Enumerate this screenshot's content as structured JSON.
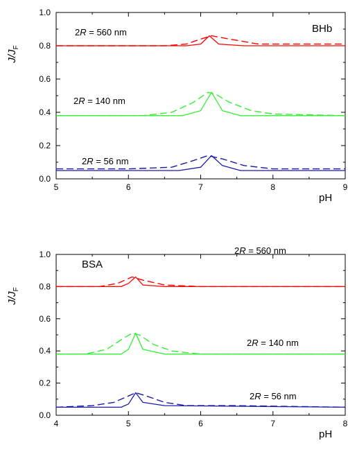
{
  "chart_data": [
    {
      "type": "line",
      "panel_label": "BHb",
      "ylabel": "J/J_F",
      "xlabel": "pH",
      "xlim": [
        5,
        9
      ],
      "ylim": [
        0,
        1.0
      ],
      "xticks": [
        "5",
        "6",
        "7",
        "8",
        "9"
      ],
      "yticks": [
        "0.0",
        "0.2",
        "0.4",
        "0.6",
        "0.8",
        "1.0"
      ],
      "grid": false,
      "series": [
        {
          "name": "2R = 560 nm",
          "color": "#ff0000",
          "style": "solid",
          "x": [
            5.0,
            6.8,
            7.0,
            7.12,
            7.25,
            7.6,
            9.0
          ],
          "y": [
            0.8,
            0.8,
            0.81,
            0.86,
            0.81,
            0.8,
            0.8
          ]
        },
        {
          "name": "2R = 560 nm",
          "color": "#ff0000",
          "style": "dashed",
          "x": [
            5.0,
            6.5,
            6.8,
            7.0,
            7.15,
            7.4,
            7.8,
            9.0
          ],
          "y": [
            0.8,
            0.8,
            0.81,
            0.84,
            0.86,
            0.84,
            0.81,
            0.81
          ]
        },
        {
          "name": "2R = 140 nm",
          "color": "#33ee33",
          "style": "solid",
          "x": [
            5.0,
            6.75,
            7.0,
            7.15,
            7.3,
            7.55,
            9.0
          ],
          "y": [
            0.38,
            0.38,
            0.41,
            0.52,
            0.41,
            0.38,
            0.38
          ]
        },
        {
          "name": "2R = 140 nm",
          "color": "#33ee33",
          "style": "dashed",
          "x": [
            5.0,
            6.2,
            6.6,
            6.9,
            7.1,
            7.2,
            7.4,
            7.7,
            8.0,
            9.0
          ],
          "y": [
            0.38,
            0.38,
            0.4,
            0.46,
            0.52,
            0.51,
            0.46,
            0.41,
            0.39,
            0.38
          ]
        },
        {
          "name": "2R = 56 nm",
          "color": "#1a1aaa",
          "style": "solid",
          "x": [
            5.0,
            6.7,
            7.0,
            7.15,
            7.3,
            7.55,
            9.0
          ],
          "y": [
            0.05,
            0.05,
            0.07,
            0.14,
            0.08,
            0.05,
            0.05
          ]
        },
        {
          "name": "2R = 56 nm",
          "color": "#1a1aaa",
          "style": "dashed",
          "x": [
            5.0,
            6.0,
            6.6,
            6.9,
            7.1,
            7.3,
            7.6,
            8.0,
            8.5,
            9.0
          ],
          "y": [
            0.06,
            0.06,
            0.07,
            0.11,
            0.14,
            0.12,
            0.08,
            0.06,
            0.06,
            0.06
          ]
        }
      ],
      "annotations": [
        {
          "text": "2R = 560 nm"
        },
        {
          "text": "2R = 140 nm"
        },
        {
          "text": "2R = 56 nm"
        }
      ]
    },
    {
      "type": "line",
      "panel_label": "BSA",
      "ylabel": "J/J_F",
      "xlabel": "pH",
      "xlim": [
        4,
        8
      ],
      "ylim": [
        0,
        1.0
      ],
      "xticks": [
        "4",
        "5",
        "6",
        "7",
        "8"
      ],
      "yticks": [
        "0.0",
        "0.2",
        "0.4",
        "0.6",
        "0.8",
        "1.0"
      ],
      "grid": false,
      "series": [
        {
          "name": "2R = 560 nm",
          "color": "#ff0000",
          "style": "solid",
          "x": [
            4.0,
            4.9,
            5.0,
            5.1,
            5.2,
            5.5,
            8.0
          ],
          "y": [
            0.8,
            0.8,
            0.82,
            0.86,
            0.81,
            0.8,
            0.8
          ]
        },
        {
          "name": "2R = 560 nm",
          "color": "#ff0000",
          "style": "dashed",
          "x": [
            4.0,
            4.6,
            4.85,
            5.05,
            5.2,
            5.5,
            6.0,
            8.0
          ],
          "y": [
            0.8,
            0.8,
            0.82,
            0.86,
            0.84,
            0.81,
            0.8,
            0.8
          ]
        },
        {
          "name": "2R = 140 nm",
          "color": "#33ee33",
          "style": "solid",
          "x": [
            4.0,
            4.9,
            5.0,
            5.1,
            5.2,
            5.5,
            8.0
          ],
          "y": [
            0.38,
            0.38,
            0.41,
            0.51,
            0.41,
            0.38,
            0.38
          ]
        },
        {
          "name": "2R = 140 nm",
          "color": "#33ee33",
          "style": "dashed",
          "x": [
            4.0,
            4.4,
            4.7,
            4.9,
            5.05,
            5.15,
            5.35,
            5.6,
            6.0,
            8.0
          ],
          "y": [
            0.38,
            0.38,
            0.41,
            0.47,
            0.51,
            0.5,
            0.44,
            0.4,
            0.38,
            0.38
          ]
        },
        {
          "name": "2R = 56 nm",
          "color": "#1a1aaa",
          "style": "solid",
          "x": [
            4.0,
            4.9,
            5.0,
            5.1,
            5.2,
            5.5,
            8.0
          ],
          "y": [
            0.05,
            0.05,
            0.07,
            0.14,
            0.08,
            0.06,
            0.05
          ]
        },
        {
          "name": "2R = 56 nm",
          "color": "#1a1aaa",
          "style": "dashed",
          "x": [
            4.0,
            4.5,
            4.8,
            5.0,
            5.1,
            5.25,
            5.5,
            5.8,
            6.5,
            8.0
          ],
          "y": [
            0.05,
            0.06,
            0.08,
            0.12,
            0.14,
            0.12,
            0.08,
            0.06,
            0.06,
            0.05
          ]
        }
      ],
      "annotations": [
        {
          "text": "2R = 560 nm"
        },
        {
          "text": "2R = 140 nm"
        },
        {
          "text": "2R = 56 nm"
        }
      ]
    }
  ]
}
